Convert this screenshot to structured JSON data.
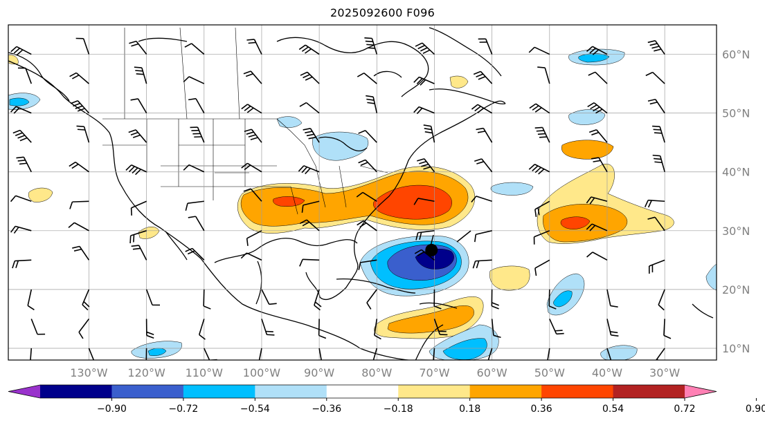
{
  "title": "2025092600 F096",
  "map": {
    "projection": "PlateCarree",
    "lon_range": [
      -144,
      -21
    ],
    "lat_range": [
      8,
      65
    ],
    "gridlines": true,
    "lon_labels": [
      "130°W",
      "120°W",
      "110°W",
      "100°W",
      "90°W",
      "80°W",
      "70°W",
      "60°W",
      "50°W",
      "40°W",
      "30°W"
    ],
    "lat_labels": [
      "60°N",
      "50°N",
      "40°N",
      "30°N",
      "20°N",
      "10°N"
    ],
    "storm_center": {
      "lon": -70.5,
      "lat": 26.7,
      "icon": "storm-center-dot"
    }
  },
  "colorbar": {
    "levels": [
      "−0.90",
      "−0.72",
      "−0.54",
      "−0.36",
      "−0.18",
      "0.18",
      "0.36",
      "0.54",
      "0.72",
      "0.90"
    ],
    "colors": [
      "#9932cc",
      "#00008b",
      "#3a5fcd",
      "#00bfff",
      "#b0e0f8",
      "#ffffff",
      "#ffe88a",
      "#ffa500",
      "#ff4500",
      "#b22222",
      "#ff80b4"
    ],
    "extend": "both"
  },
  "fill_colors": {
    "neg1": "#b0e0f8",
    "neg2": "#00bfff",
    "neg3": "#3a5fcd",
    "neg4": "#00008b",
    "pos1": "#ffe88a",
    "pos2": "#ffa500",
    "pos3": "#ff4500"
  },
  "wind_barbs": {
    "icon": "wind-barb-icon",
    "lon_spacing": 10,
    "lat_spacing": 5
  }
}
